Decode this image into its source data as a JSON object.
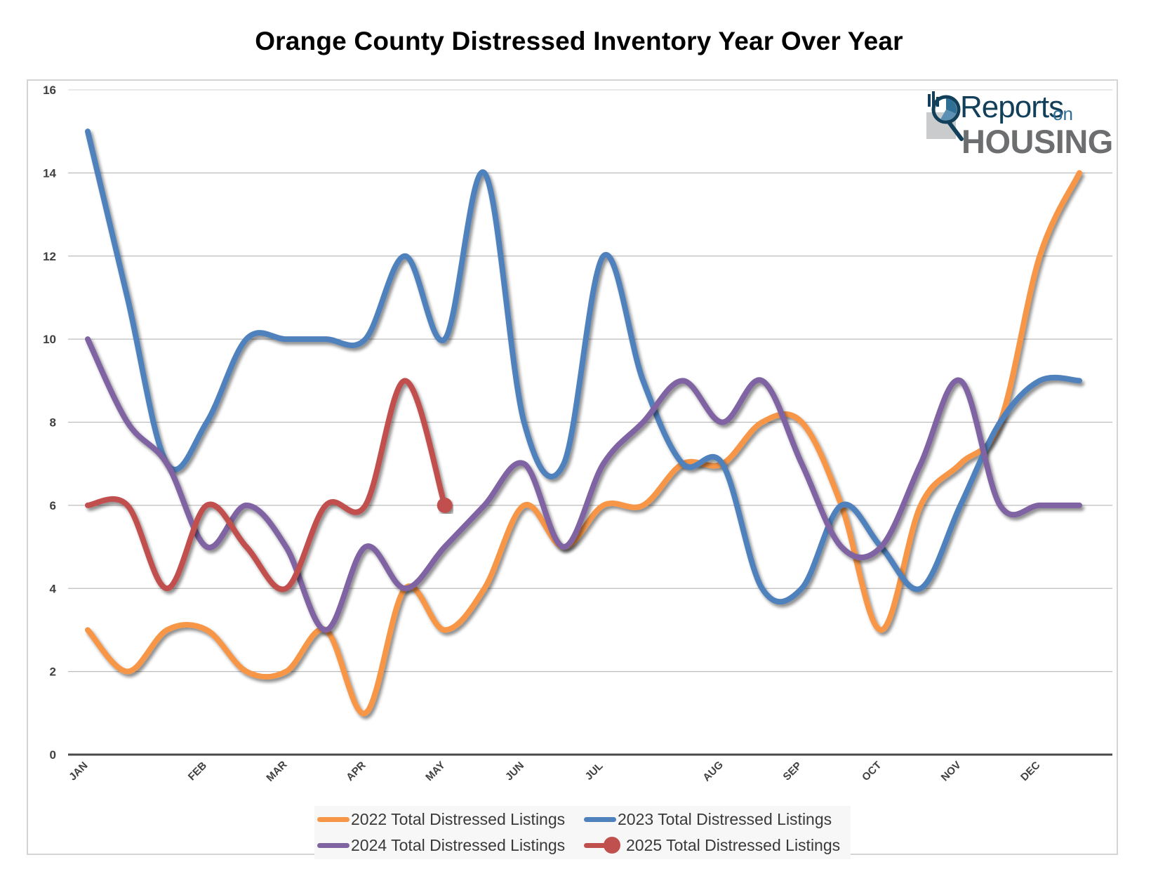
{
  "chart_data": {
    "type": "line",
    "title": "Orange County Distressed Inventory Year Over Year",
    "xlabel": "",
    "ylabel": "",
    "ylim": [
      0,
      16
    ],
    "yticks": [
      0,
      2,
      4,
      6,
      8,
      10,
      12,
      14,
      16
    ],
    "grid": true,
    "smooth": true,
    "legend_position": "bottom",
    "point_count": 26,
    "x_tick_labels": [
      {
        "index": 0,
        "label": "JAN"
      },
      {
        "index": 3,
        "label": "FEB"
      },
      {
        "index": 5,
        "label": "MAR"
      },
      {
        "index": 7,
        "label": "APR"
      },
      {
        "index": 9,
        "label": "MAY"
      },
      {
        "index": 11,
        "label": "JUN"
      },
      {
        "index": 13,
        "label": "JUL"
      },
      {
        "index": 16,
        "label": "AUG"
      },
      {
        "index": 18,
        "label": "SEP"
      },
      {
        "index": 20,
        "label": "OCT"
      },
      {
        "index": 22,
        "label": "NOV"
      },
      {
        "index": 24,
        "label": "DEC"
      }
    ],
    "series": [
      {
        "name": "2022 Total Distressed Listings",
        "color": "#f79646",
        "values": [
          3,
          2,
          3,
          3,
          2,
          2,
          3,
          1,
          4,
          3,
          4,
          6,
          5,
          6,
          6,
          7,
          7,
          8,
          8,
          6,
          3,
          6,
          7,
          8,
          12,
          14
        ]
      },
      {
        "name": "2023 Total Distressed Listings",
        "color": "#4f81bd",
        "values": [
          15,
          11,
          7,
          8,
          10,
          10,
          10,
          10,
          12,
          10,
          14,
          8,
          7,
          12,
          9,
          7,
          7,
          4,
          4,
          6,
          5,
          4,
          6,
          8,
          9,
          9
        ]
      },
      {
        "name": "2024 Total Distressed Listings",
        "color": "#8064a2",
        "values": [
          10,
          8,
          7,
          5,
          6,
          5,
          3,
          5,
          4,
          5,
          6,
          7,
          5,
          7,
          8,
          9,
          8,
          9,
          7,
          5,
          5,
          7,
          9,
          6,
          6,
          6
        ]
      },
      {
        "name": "2025 Total Distressed Listings",
        "color": "#c0504d",
        "end_marker": true,
        "values": [
          6,
          6,
          4,
          6,
          5,
          4,
          6,
          6,
          9,
          6
        ]
      }
    ]
  },
  "legend": {
    "items": [
      {
        "label": "2022 Total Distressed Listings",
        "color": "#f79646"
      },
      {
        "label": "2023 Total Distressed Listings",
        "color": "#4f81bd"
      },
      {
        "label": "2024 Total Distressed Listings",
        "color": "#8064a2"
      },
      {
        "label": "2025 Total Distressed Listings",
        "color": "#c0504d"
      }
    ]
  },
  "logo": {
    "line1": "Reports",
    "line1_suffix": "on",
    "line2": "HOUSING"
  }
}
